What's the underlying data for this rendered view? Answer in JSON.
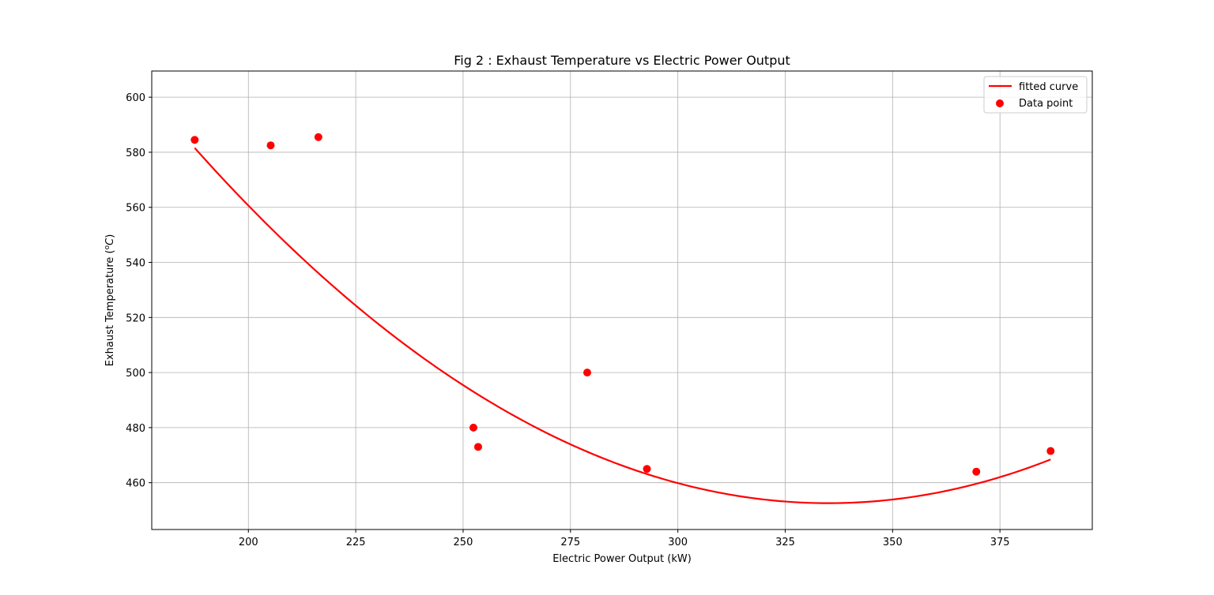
{
  "chart_data": {
    "type": "scatter",
    "title": "Fig 2 : Exhaust Temperature vs Electric Power Output",
    "xlabel": "Electric Power Output (kW)",
    "ylabel_main": "Exhaust Temperature (",
    "ylabel_sup": "o",
    "ylabel_unit": "C",
    "ylabel_close": ")",
    "xlim": [
      177.5,
      396.5
    ],
    "ylim": [
      443.0,
      609.5
    ],
    "xticks": [
      200,
      225,
      250,
      275,
      300,
      325,
      350,
      375
    ],
    "yticks": [
      460,
      480,
      500,
      520,
      540,
      560,
      580,
      600
    ],
    "grid": true,
    "legend_position": "top-right",
    "colors": {
      "curve": "#ff0000",
      "points": "#ff0000",
      "grid": "#b0b0b0",
      "axes": "#000000"
    },
    "series": [
      {
        "name": "fitted curve",
        "kind": "line",
        "coefficients": [
          1117.8,
          -3.971,
          0.005926
        ],
        "x_range": [
          187.5,
          386.8
        ],
        "samples": 120
      },
      {
        "name": "Data point",
        "kind": "scatter",
        "points": [
          {
            "x": 187.5,
            "y": 584.5
          },
          {
            "x": 205.2,
            "y": 582.5
          },
          {
            "x": 216.3,
            "y": 585.5
          },
          {
            "x": 252.4,
            "y": 480.0
          },
          {
            "x": 253.5,
            "y": 473.0
          },
          {
            "x": 278.9,
            "y": 500.0
          },
          {
            "x": 292.8,
            "y": 465.0
          },
          {
            "x": 369.5,
            "y": 464.0
          },
          {
            "x": 386.8,
            "y": 471.5
          }
        ]
      }
    ]
  }
}
